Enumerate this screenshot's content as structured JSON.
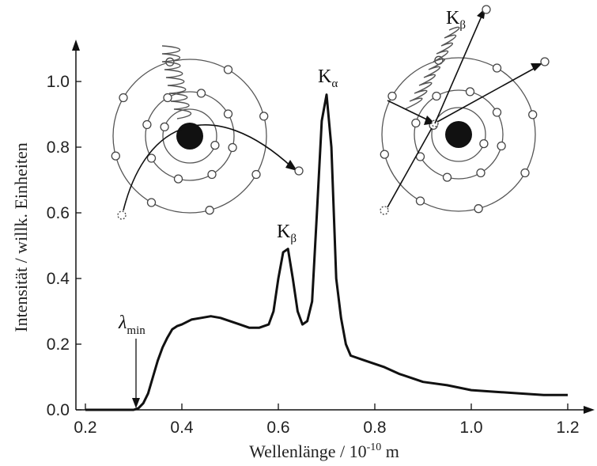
{
  "chart_data": {
    "type": "line",
    "xlabel": "Wellenlänge / 10",
    "xlabel_exp": "-10",
    "xlabel_unit": " m",
    "ylabel": "Intensität / willk. Einheiten",
    "xlim": [
      0.2,
      1.25
    ],
    "ylim": [
      0.0,
      1.1
    ],
    "xticks": [
      "0.2",
      "0.4",
      "0.6",
      "0.8",
      "1.0",
      "1.2"
    ],
    "yticks": [
      "0.0",
      "0.2",
      "0.4",
      "0.6",
      "0.8",
      "1.0"
    ],
    "grid": false,
    "series": [
      {
        "x": [
          0.2,
          0.3,
          0.31,
          0.32,
          0.33,
          0.34,
          0.35,
          0.36,
          0.37,
          0.38,
          0.39,
          0.4,
          0.42,
          0.44,
          0.46,
          0.48,
          0.5,
          0.52,
          0.54,
          0.56,
          0.58,
          0.59,
          0.6,
          0.61,
          0.62,
          0.63,
          0.64,
          0.65,
          0.66,
          0.67,
          0.68,
          0.69,
          0.7,
          0.71,
          0.72,
          0.73,
          0.74,
          0.75,
          0.78,
          0.8,
          0.82,
          0.85,
          0.88,
          0.9,
          0.95,
          1.0,
          1.05,
          1.1,
          1.15,
          1.2
        ],
        "y": [
          0.0,
          0.0,
          0.005,
          0.02,
          0.05,
          0.1,
          0.15,
          0.19,
          0.22,
          0.245,
          0.255,
          0.26,
          0.275,
          0.28,
          0.285,
          0.28,
          0.27,
          0.26,
          0.25,
          0.25,
          0.26,
          0.3,
          0.4,
          0.48,
          0.49,
          0.4,
          0.3,
          0.26,
          0.27,
          0.33,
          0.6,
          0.88,
          0.96,
          0.8,
          0.4,
          0.28,
          0.2,
          0.165,
          0.15,
          0.14,
          0.13,
          0.11,
          0.095,
          0.085,
          0.075,
          0.06,
          0.055,
          0.05,
          0.045,
          0.045
        ]
      }
    ],
    "annotations": {
      "lambda_min": {
        "symbol": "λ",
        "sub": "min",
        "x": 0.31
      },
      "k_alpha": {
        "main": "K",
        "sub": "α",
        "x": 0.7,
        "y": 0.96
      },
      "k_beta": {
        "main": "K",
        "sub": "β",
        "x": 0.62,
        "y": 0.49
      },
      "k_beta_inset": {
        "main": "K",
        "sub": "β"
      }
    }
  }
}
